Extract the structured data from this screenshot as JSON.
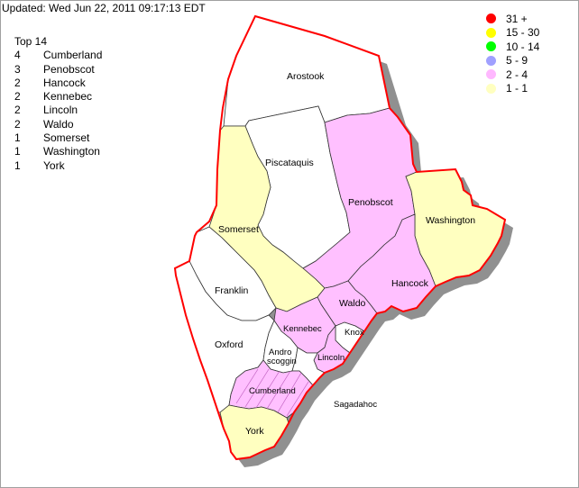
{
  "header": {
    "updated": "Updated: Wed Jun 22, 2011 09:17:13 EDT"
  },
  "top_list": {
    "title": "Top 14",
    "rows": [
      {
        "count": "4",
        "county": "Cumberland"
      },
      {
        "count": "3",
        "county": "Penobscot"
      },
      {
        "count": "2",
        "county": "Hancock"
      },
      {
        "count": "2",
        "county": "Kennebec"
      },
      {
        "count": "2",
        "county": "Lincoln"
      },
      {
        "count": "2",
        "county": "Waldo"
      },
      {
        "count": "1",
        "county": "Somerset"
      },
      {
        "count": "1",
        "county": "Washington"
      },
      {
        "count": "1",
        "county": "York"
      }
    ]
  },
  "legend": {
    "items": [
      {
        "label": "31 +",
        "color": "#ff0000"
      },
      {
        "label": "15 - 30",
        "color": "#ffff00"
      },
      {
        "label": "10 - 14",
        "color": "#00ff00"
      },
      {
        "label": "5 - 9",
        "color": "#a0a0ff"
      },
      {
        "label": "2 - 4",
        "color": "#ffb8ff"
      },
      {
        "label": "1 - 1",
        "color": "#ffffc0"
      }
    ]
  },
  "map": {
    "counties": {
      "aroostook": "Arostook",
      "piscataquis": "Piscataquis",
      "penobscot": "Penobscot",
      "somerset": "Somerset",
      "washington": "Washington",
      "franklin": "Franklin",
      "hancock": "Hancock",
      "waldo": "Waldo",
      "kennebec": "Kennebec",
      "knox": "Knox",
      "oxford": "Oxford",
      "androscoggin_line1": "Andro",
      "androscoggin_line2": "scoggin",
      "lincoln": "Lincoln",
      "cumberland": "Cumberland",
      "sagadahoc": "Sagadahoc",
      "york": "York"
    },
    "fill_colors": {
      "white": "#ffffff",
      "pink": "#ffc0ff",
      "yellow": "#ffffc0",
      "shadow": "#909090",
      "border": "#ff0000"
    }
  }
}
